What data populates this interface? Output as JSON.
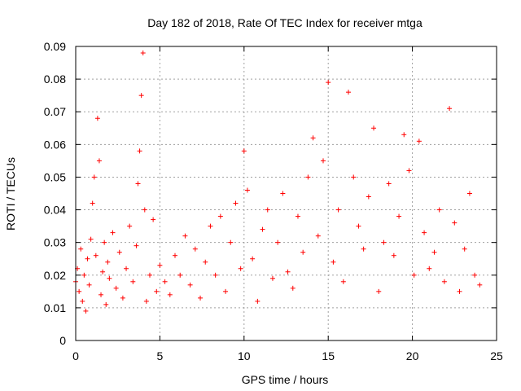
{
  "chart_data": {
    "type": "scatter",
    "title": "Day 182 of 2018, Rate Of TEC Index for receiver mtga",
    "xlabel": "GPS time / hours",
    "ylabel": "ROTI / TECUs",
    "xlim": [
      0,
      25
    ],
    "ylim": [
      0,
      0.09
    ],
    "x_ticks": [
      "0",
      "5",
      "10",
      "15",
      "20",
      "25"
    ],
    "y_ticks": [
      "0",
      "0.01",
      "0.02",
      "0.03",
      "0.04",
      "0.05",
      "0.06",
      "0.07",
      "0.08",
      "0.09"
    ],
    "grid": true,
    "marker": "+",
    "color": "#ff0000",
    "series": [
      {
        "name": "ROTI",
        "x": [
          0.0,
          0.1,
          0.2,
          0.3,
          0.4,
          0.5,
          0.6,
          0.7,
          0.8,
          0.9,
          1.0,
          1.1,
          1.2,
          1.3,
          1.4,
          1.5,
          1.6,
          1.7,
          1.8,
          1.9,
          2.0,
          2.2,
          2.4,
          2.6,
          2.8,
          3.0,
          3.2,
          3.4,
          3.6,
          3.7,
          3.8,
          3.9,
          4.0,
          4.1,
          4.2,
          4.4,
          4.6,
          4.8,
          5.0,
          5.3,
          5.6,
          5.9,
          6.2,
          6.5,
          6.8,
          7.1,
          7.4,
          7.7,
          8.0,
          8.3,
          8.6,
          8.9,
          9.2,
          9.5,
          9.8,
          10.0,
          10.2,
          10.5,
          10.8,
          11.1,
          11.4,
          11.7,
          12.0,
          12.3,
          12.6,
          12.9,
          13.2,
          13.5,
          13.8,
          14.1,
          14.4,
          14.7,
          15.0,
          15.3,
          15.6,
          15.9,
          16.2,
          16.5,
          16.8,
          17.1,
          17.4,
          17.7,
          18.0,
          18.3,
          18.6,
          18.9,
          19.2,
          19.5,
          19.8,
          20.1,
          20.4,
          20.7,
          21.0,
          21.3,
          21.6,
          21.9,
          22.2,
          22.5,
          22.8,
          23.1,
          23.4,
          23.7,
          24.0
        ],
        "y": [
          0.018,
          0.022,
          0.015,
          0.028,
          0.012,
          0.02,
          0.009,
          0.025,
          0.017,
          0.031,
          0.042,
          0.05,
          0.026,
          0.068,
          0.055,
          0.014,
          0.021,
          0.03,
          0.011,
          0.024,
          0.019,
          0.033,
          0.016,
          0.027,
          0.013,
          0.022,
          0.035,
          0.018,
          0.029,
          0.048,
          0.058,
          0.075,
          0.088,
          0.04,
          0.012,
          0.02,
          0.037,
          0.015,
          0.023,
          0.018,
          0.014,
          0.026,
          0.02,
          0.032,
          0.017,
          0.028,
          0.013,
          0.024,
          0.035,
          0.02,
          0.038,
          0.015,
          0.03,
          0.042,
          0.022,
          0.058,
          0.046,
          0.025,
          0.012,
          0.034,
          0.04,
          0.019,
          0.03,
          0.045,
          0.021,
          0.016,
          0.038,
          0.027,
          0.05,
          0.062,
          0.032,
          0.055,
          0.079,
          0.024,
          0.04,
          0.018,
          0.076,
          0.05,
          0.035,
          0.028,
          0.044,
          0.065,
          0.015,
          0.03,
          0.048,
          0.026,
          0.038,
          0.063,
          0.052,
          0.02,
          0.061,
          0.033,
          0.022,
          0.027,
          0.04,
          0.018,
          0.071,
          0.036,
          0.015,
          0.028,
          0.045,
          0.02,
          0.017
        ]
      }
    ]
  }
}
